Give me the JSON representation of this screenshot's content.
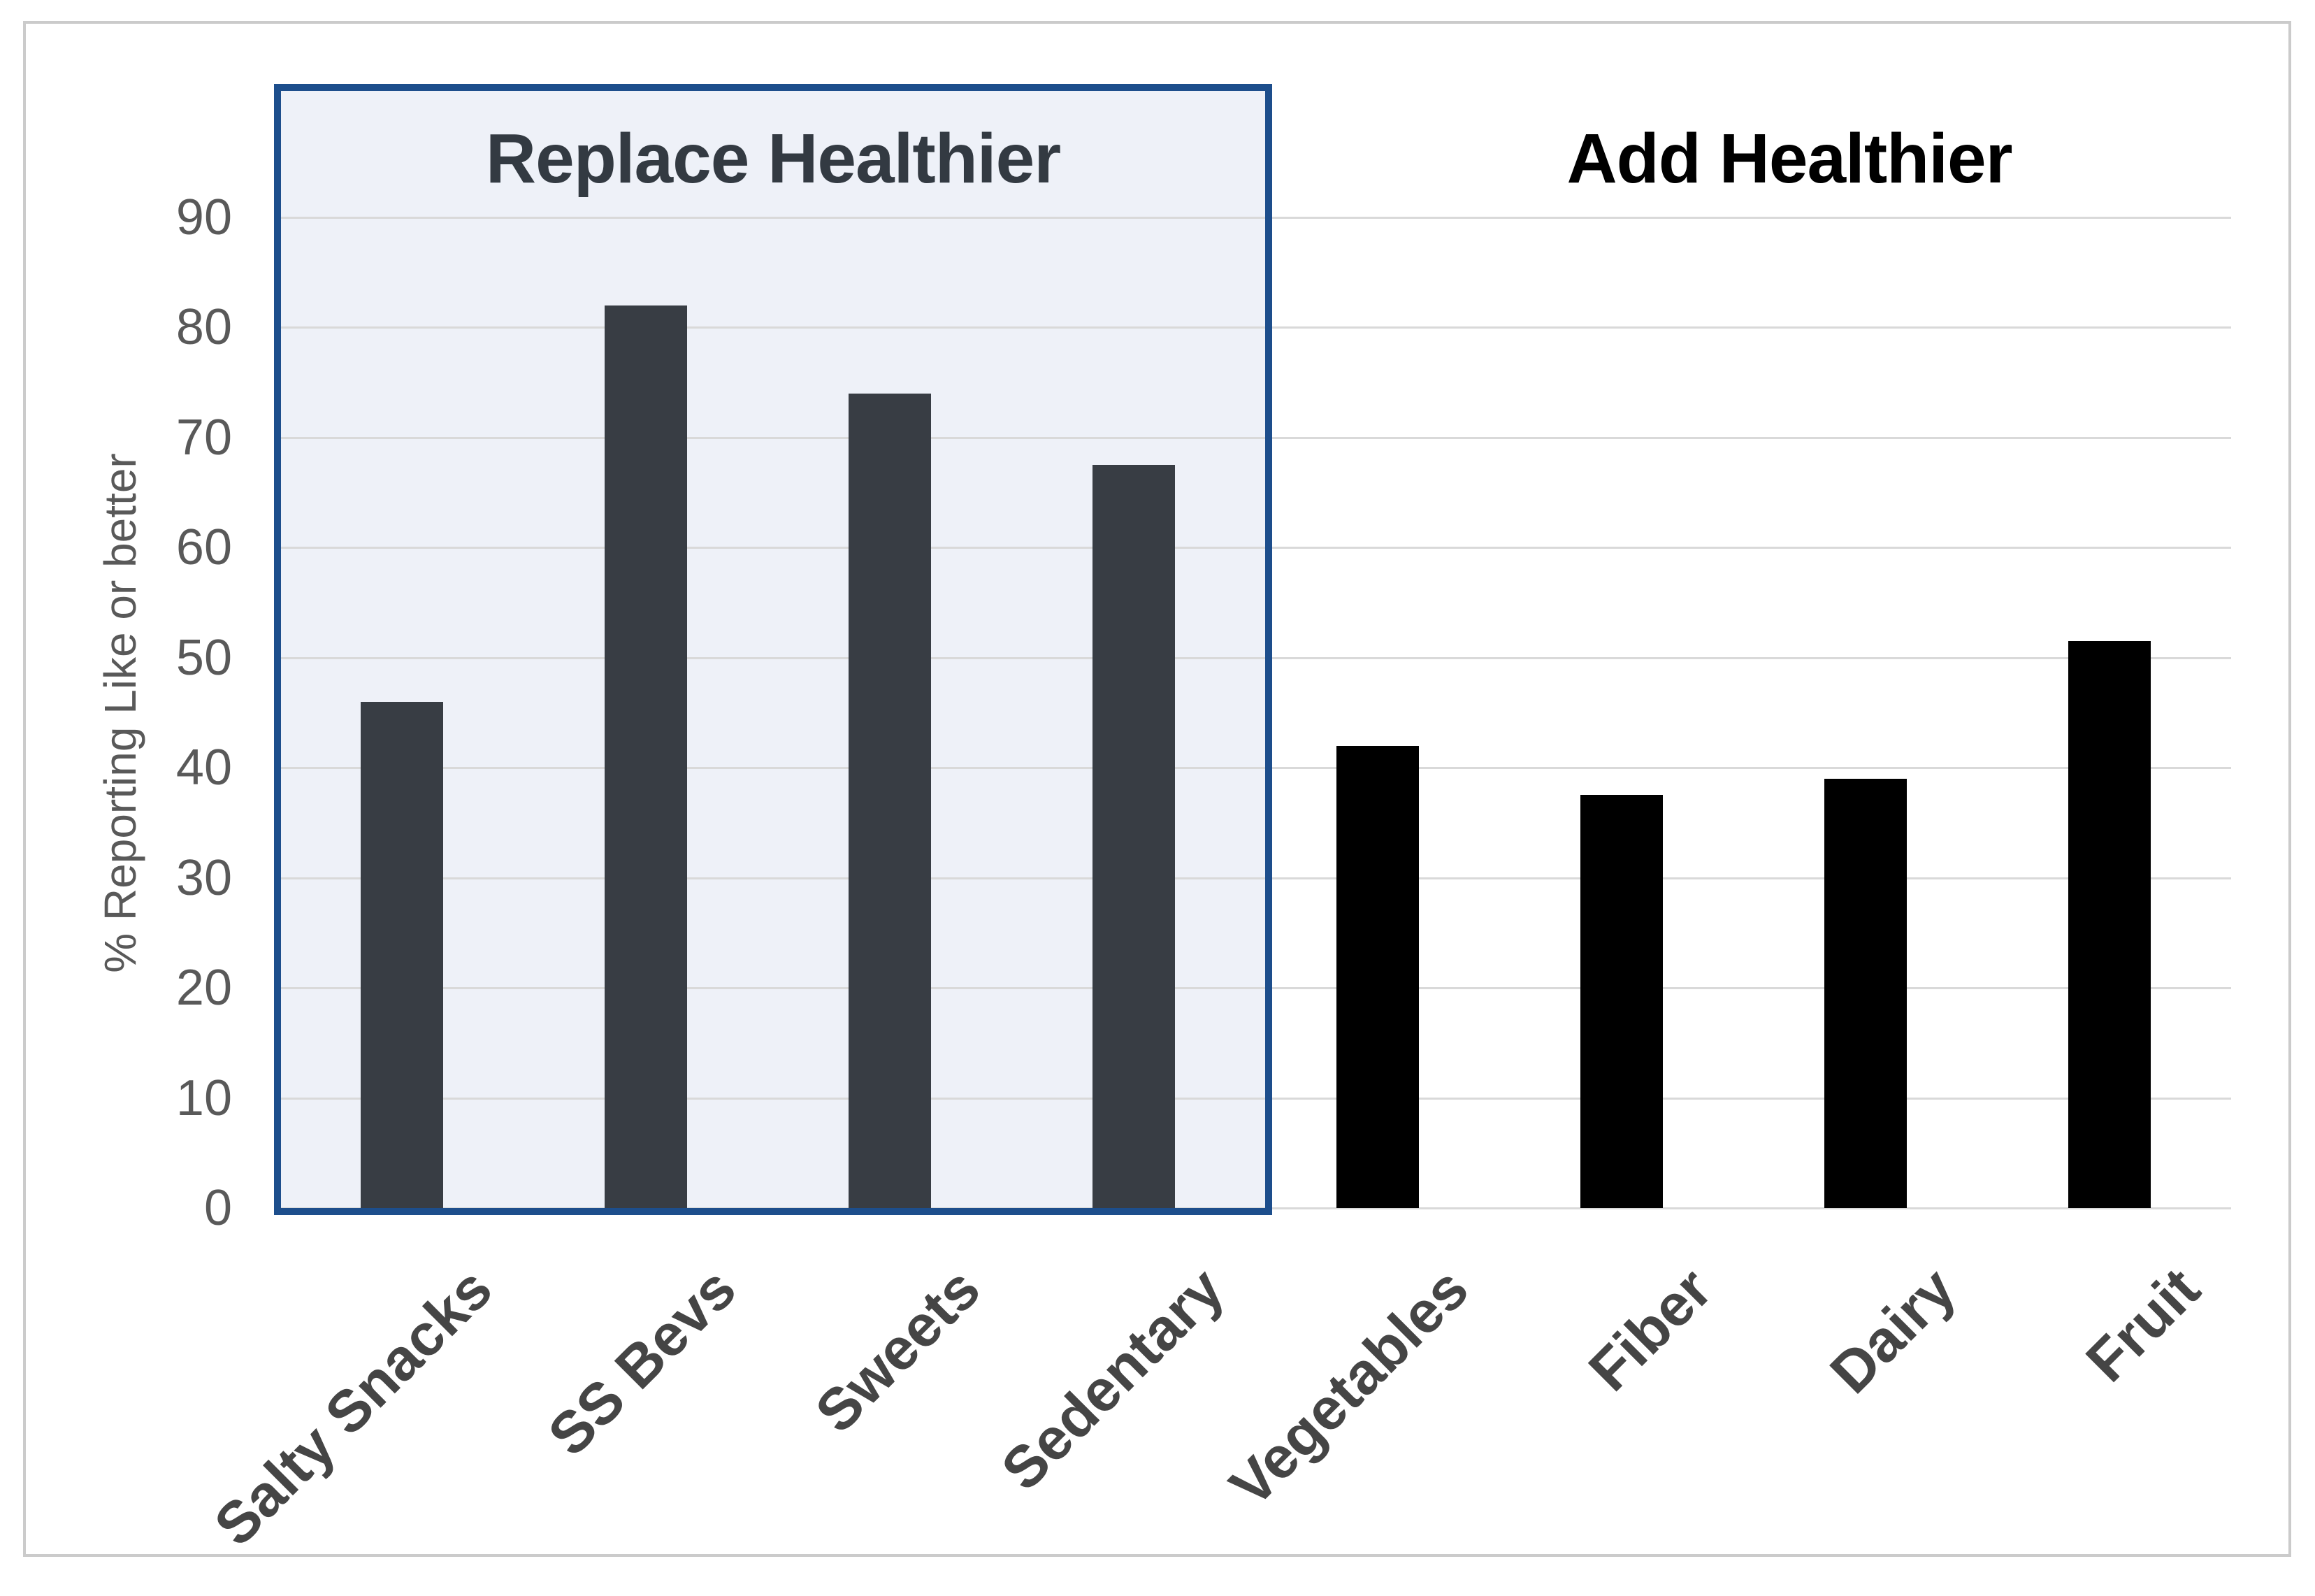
{
  "chart_data": {
    "type": "bar",
    "ylabel": "% Reporting Like or better",
    "ylim": [
      0,
      100
    ],
    "yticks": [
      0,
      10,
      20,
      30,
      40,
      50,
      60,
      70,
      80,
      90
    ],
    "grid": true,
    "grid_color": "#d9d9d9",
    "legend_position": "none",
    "groups": [
      {
        "label": "Replace Healthier",
        "label_color": "#333a42",
        "highlighted": true,
        "box_fill_color": "#eef1f8",
        "box_border_color": "#1d4e8c",
        "bar_color": "#383d44",
        "categories": [
          "Salty Snacks",
          "SS Bevs",
          "Sweets",
          "Sedentary"
        ],
        "values": [
          46,
          82,
          74,
          67.5
        ]
      },
      {
        "label": "Add Healthier",
        "label_color": "#000000",
        "highlighted": false,
        "bar_color": "#000000",
        "categories": [
          "Vegetables",
          "Fiber",
          "Dairy",
          "Fruit"
        ],
        "values": [
          42,
          37.5,
          39,
          51.5
        ]
      }
    ]
  }
}
